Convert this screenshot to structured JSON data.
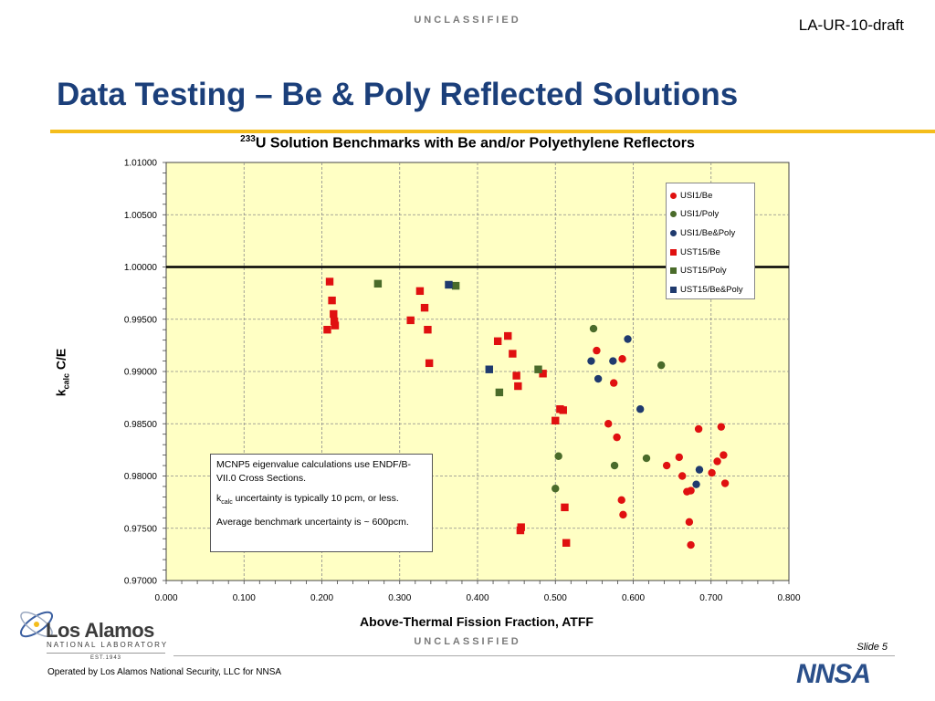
{
  "header": {
    "classification": "UNCLASSIFIED",
    "doc_id": "LA-UR-10-draft",
    "title": "Data Testing – Be & Poly Reflected Solutions"
  },
  "chart_title": {
    "iso": "233",
    "text": "U Solution Benchmarks with Be and/or Polyethylene Reflectors"
  },
  "ylabel": {
    "main": "k",
    "sub": "calc",
    "rest": " C/E"
  },
  "xlabel": "Above-Thermal Fission Fraction, ATFF",
  "note": {
    "line1": "MCNP5 eigenvalue calculations use ENDF/B-VII.0 Cross Sections.",
    "line2_main": "k",
    "line2_sub": "calc",
    "line2_rest": " uncertainty is typically 10 pcm, or less.",
    "line3": "Average benchmark uncertainty is ~ 600pcm."
  },
  "chart_data": {
    "type": "scatter",
    "title": "233U Solution Benchmarks with Be and/or Polyethylene Reflectors",
    "xlabel": "Above-Thermal Fission Fraction, ATFF",
    "ylabel": "kcalc C/E",
    "xlim": [
      0.0,
      0.8
    ],
    "ylim": [
      0.97,
      1.01
    ],
    "x_ticks": [
      "0.000",
      "0.100",
      "0.200",
      "0.300",
      "0.400",
      "0.500",
      "0.600",
      "0.700",
      "0.800"
    ],
    "y_ticks": [
      "0.97000",
      "0.97500",
      "0.98000",
      "0.98500",
      "0.99000",
      "0.99500",
      "1.00000",
      "1.00500",
      "1.01000"
    ],
    "reference_line": 1.0,
    "grid": true,
    "background": "#ffffc4",
    "legend_position": "upper-right",
    "series": [
      {
        "name": "USI1/Be",
        "marker": "circle",
        "color": "#e01010",
        "x": [
          0.553,
          0.586,
          0.575,
          0.568,
          0.579,
          0.585,
          0.587,
          0.643,
          0.659,
          0.663,
          0.669,
          0.674,
          0.672,
          0.674,
          0.684,
          0.701,
          0.708,
          0.713,
          0.716,
          0.718
        ],
        "y": [
          0.992,
          0.9912,
          0.9889,
          0.985,
          0.9837,
          0.9777,
          0.9763,
          0.981,
          0.9818,
          0.98,
          0.9785,
          0.9786,
          0.9756,
          0.9734,
          0.9845,
          0.9803,
          0.9814,
          0.9847,
          0.982,
          0.9793
        ]
      },
      {
        "name": "USI1/Poly",
        "marker": "circle",
        "color": "#4a6b2a",
        "x": [
          0.549,
          0.636,
          0.504,
          0.5,
          0.576,
          0.617
        ],
        "y": [
          0.9941,
          0.9906,
          0.9819,
          0.9788,
          0.981,
          0.9817
        ]
      },
      {
        "name": "USI1/Be&Poly",
        "marker": "circle",
        "color": "#1f3a6e",
        "x": [
          0.593,
          0.546,
          0.574,
          0.555,
          0.609,
          0.685,
          0.681
        ],
        "y": [
          0.9931,
          0.991,
          0.991,
          0.9893,
          0.9864,
          0.9806,
          0.9792
        ]
      },
      {
        "name": "UST15/Be",
        "marker": "square",
        "color": "#e01010",
        "x": [
          0.21,
          0.213,
          0.215,
          0.216,
          0.217,
          0.207,
          0.326,
          0.332,
          0.314,
          0.336,
          0.338,
          0.439,
          0.426,
          0.445,
          0.45,
          0.452,
          0.484,
          0.5,
          0.506,
          0.51,
          0.512,
          0.456,
          0.455,
          0.514
        ],
        "y": [
          0.9986,
          0.9968,
          0.9955,
          0.9948,
          0.9944,
          0.994,
          0.9977,
          0.9961,
          0.9949,
          0.994,
          0.9908,
          0.9934,
          0.9929,
          0.9917,
          0.9896,
          0.9886,
          0.9898,
          0.9853,
          0.9864,
          0.9863,
          0.977,
          0.9751,
          0.9748,
          0.9736
        ]
      },
      {
        "name": "UST15/Poly",
        "marker": "square",
        "color": "#4a6b2a",
        "x": [
          0.272,
          0.372,
          0.478,
          0.428
        ],
        "y": [
          0.9984,
          0.9982,
          0.9902,
          0.988
        ]
      },
      {
        "name": "UST15/Be&Poly",
        "marker": "square",
        "color": "#1f3a6e",
        "x": [
          0.363,
          0.415
        ],
        "y": [
          0.9983,
          0.9902
        ]
      }
    ]
  },
  "footer": {
    "classification": "UNCLASSIFIED",
    "slide": "Slide 5",
    "operated": "Operated by Los Alamos National Security, LLC for NNSA",
    "logo_name": "Los Alamos",
    "logo_sub": "NATIONAL LABORATORY",
    "logo_est": "EST.1943",
    "nnsa": "NNSA"
  }
}
